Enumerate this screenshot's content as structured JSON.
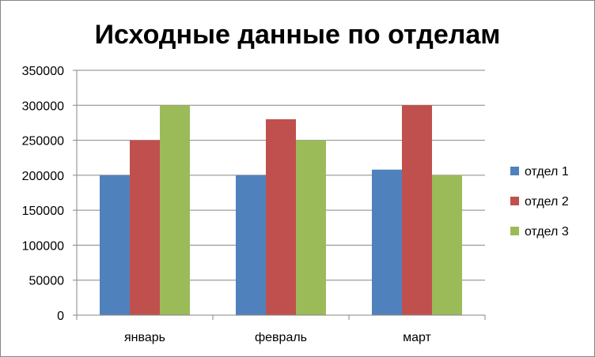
{
  "chart_data": {
    "type": "bar",
    "title": "Исходные данные по отделам",
    "categories": [
      "январь",
      "февраль",
      "март"
    ],
    "series": [
      {
        "name": "отдел 1",
        "values": [
          200000,
          200000,
          208000
        ],
        "color": "#4F81BD"
      },
      {
        "name": "отдел 2",
        "values": [
          250000,
          280000,
          300000
        ],
        "color": "#C0504D"
      },
      {
        "name": "отдел 3",
        "values": [
          300000,
          250000,
          200000
        ],
        "color": "#9BBB59"
      }
    ],
    "ylim": [
      0,
      350000
    ],
    "yticks": [
      "0",
      "50000",
      "100000",
      "150000",
      "200000",
      "250000",
      "300000",
      "350000"
    ],
    "grid": true,
    "legend": "right"
  }
}
